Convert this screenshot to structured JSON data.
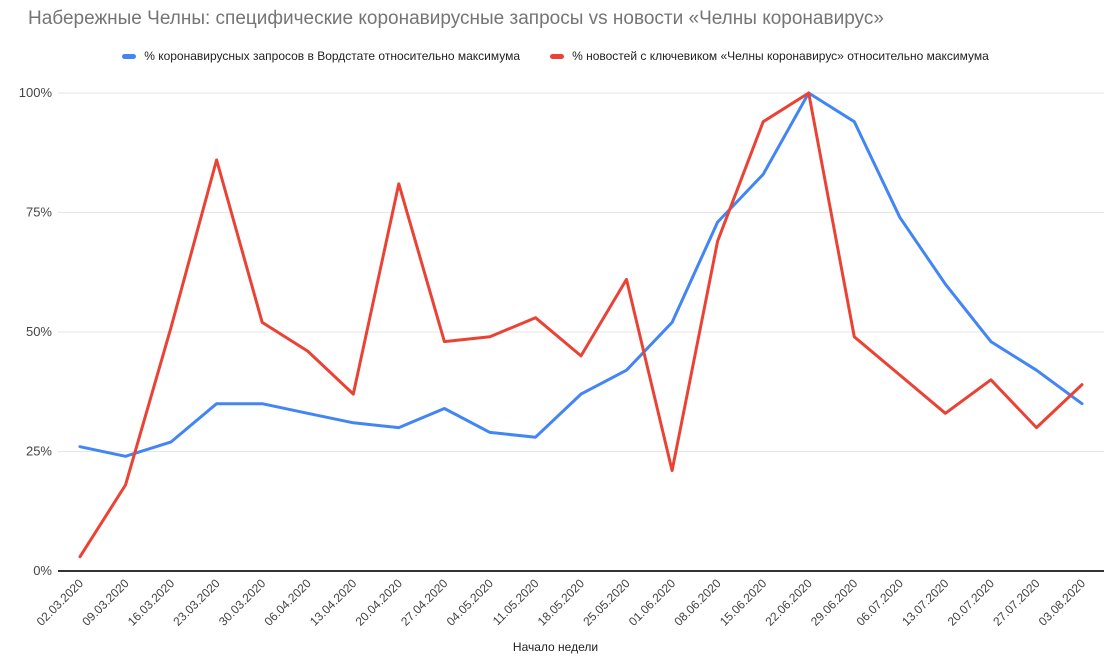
{
  "title": "Набережные Челны: специфические коронавирусные запросы vs новости «Челны коронавирус»",
  "chart_data": {
    "type": "line",
    "x": [
      "02.03.2020",
      "09.03.2020",
      "16.03.2020",
      "23.03.2020",
      "30.03.2020",
      "06.04.2020",
      "13.04.2020",
      "20.04.2020",
      "27.04.2020",
      "04.05.2020",
      "11.05.2020",
      "18.05.2020",
      "25.05.2020",
      "01.06.2020",
      "08.06.2020",
      "15.06.2020",
      "22.06.2020",
      "29.06.2020",
      "06.07.2020",
      "13.07.2020",
      "20.07.2020",
      "27.07.2020",
      "03.08.2020"
    ],
    "series": [
      {
        "name": "% коронавирусных запросов в Вордстате относительно максимума",
        "color": "#4285F4",
        "values": [
          26,
          24,
          27,
          35,
          35,
          33,
          31,
          30,
          34,
          29,
          28,
          37,
          42,
          52,
          73,
          83,
          100,
          94,
          74,
          60,
          48,
          42,
          35
        ]
      },
      {
        "name": "% новостей с ключевиком «Челны коронавирус» относительно максимума",
        "color": "#EA4335",
        "values": [
          3,
          18,
          51,
          86,
          52,
          46,
          37,
          81,
          48,
          49,
          53,
          45,
          61,
          21,
          69,
          94,
          100,
          49,
          41,
          33,
          40,
          30,
          39
        ]
      }
    ],
    "xlabel": "Начало недели",
    "ylabel": "",
    "ylim": [
      0,
      100
    ],
    "yticks": [
      "0%",
      "25%",
      "50%",
      "75%",
      "100%"
    ],
    "grid": true,
    "legend_position": "top"
  },
  "colors": {
    "title_text": "#757575",
    "legend_text": "#222222",
    "y_tick_text": "#444444",
    "x_tick_text": "#424242",
    "gridline": "#e6e6e6",
    "axis_line": "#333333",
    "background": "#ffffff"
  }
}
